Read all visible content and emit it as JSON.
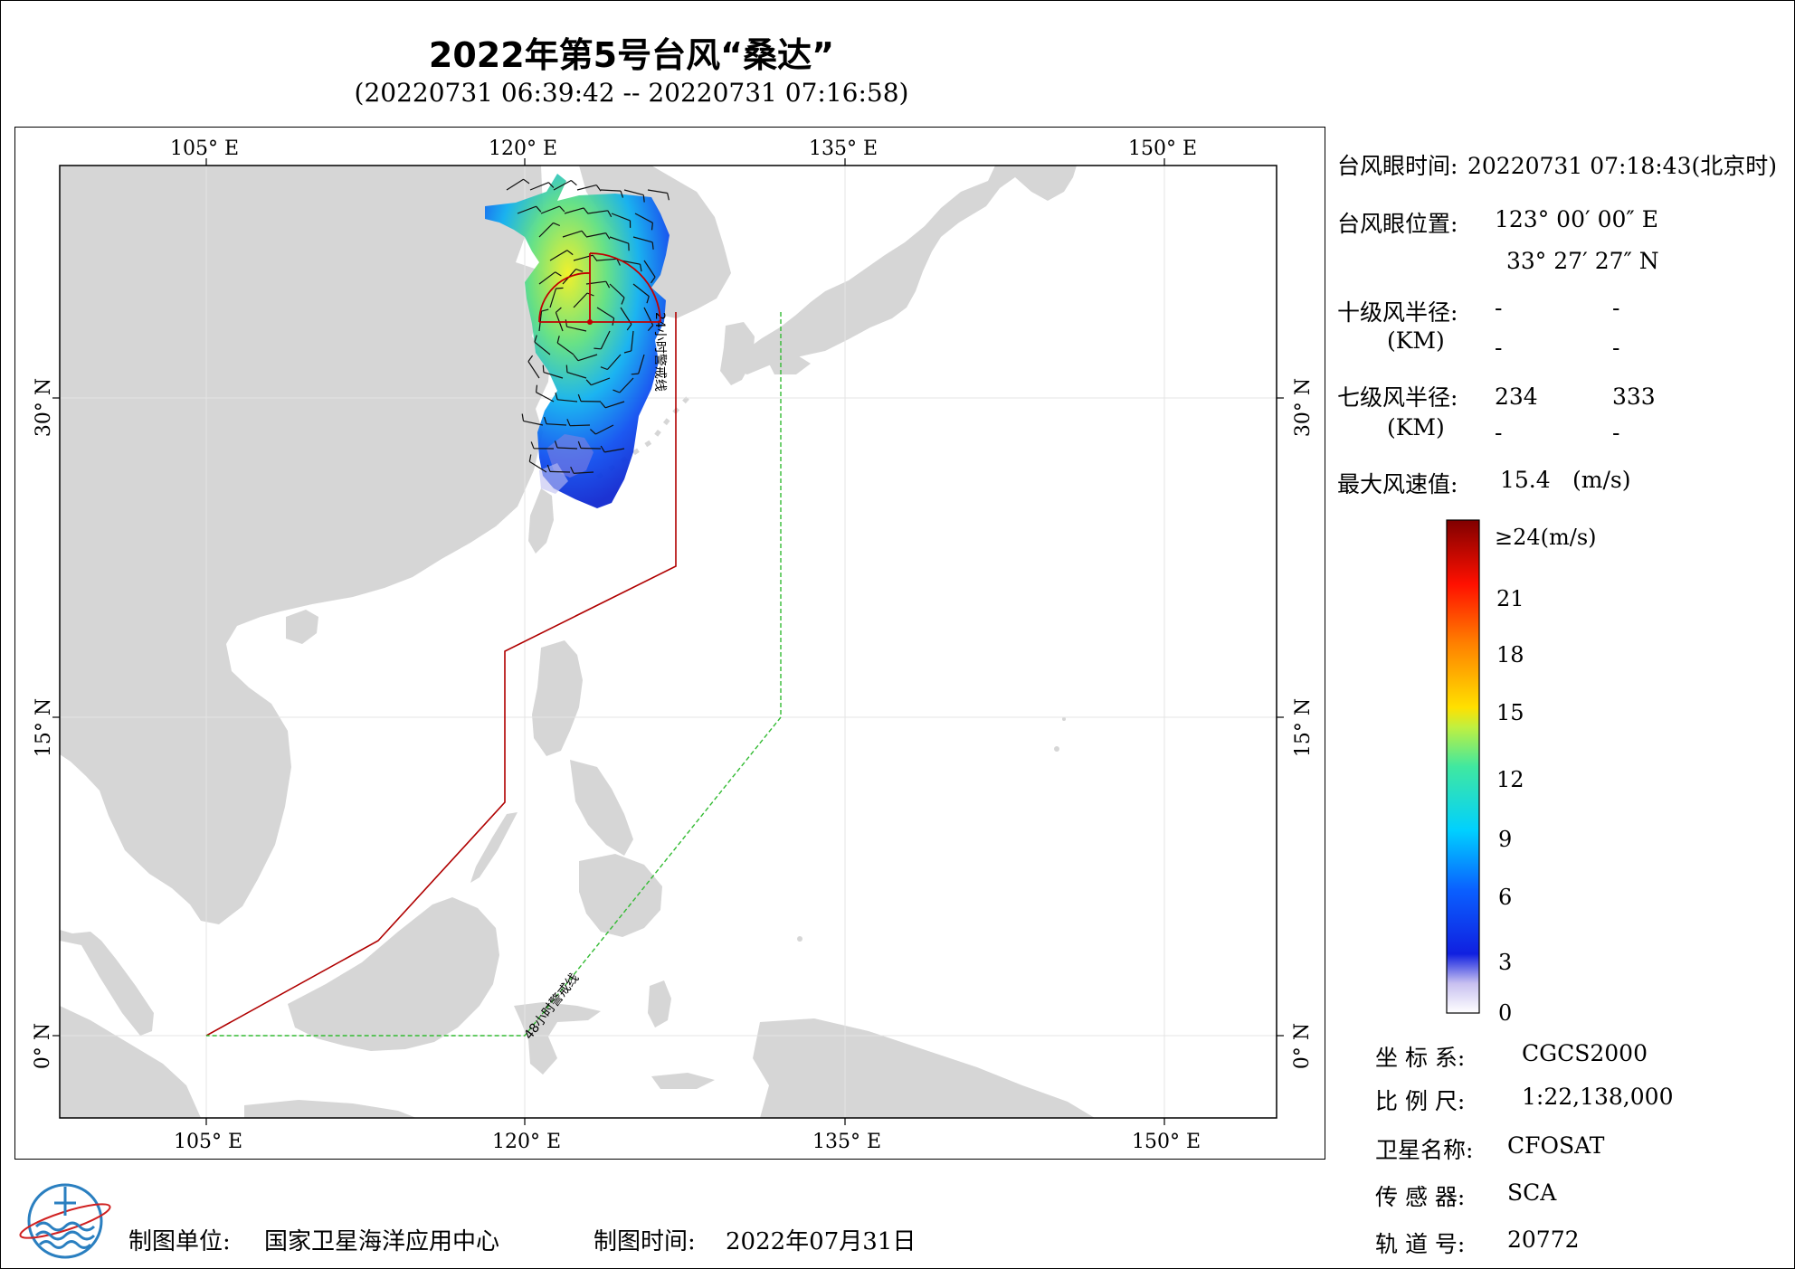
{
  "title": "2022年第5号台风“桑达”",
  "subtitle": "(20220731 06:39:42 -- 20220731 07:16:58)",
  "map": {
    "lon_ticks": [
      "105° E",
      "120° E",
      "135° E",
      "150° E"
    ],
    "lat_ticks": [
      "0° N",
      "15° N",
      "30° N"
    ],
    "warning_24h_label": "24小时警戒线",
    "warning_48h_label": "48小时警戒线",
    "colors": {
      "land": "#d6d6d6",
      "ocean": "#ffffff",
      "warning_24h": "#b00000",
      "warning_48h": "#33bb33",
      "grid": "#e4e4e4"
    },
    "typhoon_eye": {
      "lon": 123.0,
      "lat": 33.46
    }
  },
  "info": {
    "eye_time_label": "台风眼时间:",
    "eye_time_value": "20220731 07:18:43(北京时)",
    "eye_pos_label": "台风眼位置:",
    "eye_lon": "123° 00′ 00″ E",
    "eye_lat": "33° 27′ 27″ N",
    "r10_label": "十级风半径:",
    "r10_unit": "(KM)",
    "r10_values": [
      "-",
      "-",
      "-",
      "-"
    ],
    "r7_label": "七级风半径:",
    "r7_unit": "(KM)",
    "r7_values": [
      "234",
      "333",
      "-",
      "-"
    ],
    "max_wind_label": "最大风速值:",
    "max_wind_value": "15.4",
    "max_wind_unit": "(m/s)"
  },
  "colorbar": {
    "labels": [
      "≥24(m/s)",
      "21",
      "18",
      "15",
      "12",
      "9",
      "6",
      "3",
      "0"
    ],
    "stops": [
      "#ffffff",
      "#c8c0f0",
      "#1020e0",
      "#0a60ff",
      "#00d0ff",
      "#40e8a0",
      "#c0f040",
      "#ffe000",
      "#ff8000",
      "#ff1000",
      "#800000"
    ]
  },
  "meta": {
    "crs_label": "坐 标 系:",
    "crs_value": "CGCS2000",
    "scale_label": "比 例 尺:",
    "scale_value": "1:22,138,000",
    "satellite_label": "卫星名称:",
    "satellite_value": "CFOSAT",
    "sensor_label": "传 感 器:",
    "sensor_value": "SCA",
    "orbit_label": "轨 道 号:",
    "orbit_value": "20772"
  },
  "footer": {
    "unit_label": "制图单位:",
    "unit_value": "国家卫星海洋应用中心",
    "date_label": "制图时间:",
    "date_value": "2022年07月31日"
  },
  "logo_icon": "noc-logo-icon"
}
